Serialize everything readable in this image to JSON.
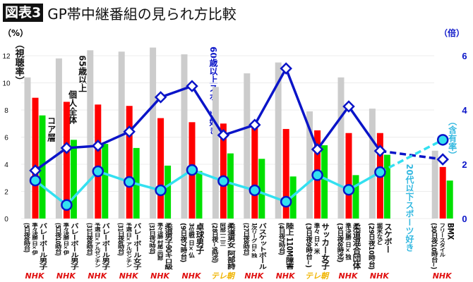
{
  "header": {
    "badge": "図表3",
    "title": "GP帯中継番組の見られ方比較"
  },
  "chart_data": {
    "type": "bar+line",
    "title": "GP帯中継番組の見られ方比較",
    "left_axis": {
      "unit": "（%）",
      "label": "（視聴率）",
      "ticks": [
        0,
        2,
        4,
        6,
        8,
        10,
        12
      ],
      "range": [
        0,
        12
      ]
    },
    "right_axis": {
      "unit": "（倍）",
      "label": "（含有率）",
      "ticks": [
        0,
        2,
        4,
        6
      ],
      "range": [
        0,
        6
      ]
    },
    "grid": true,
    "categories": [
      {
        "name": "バレーボール男子",
        "sub": "準々決勝 日×伊",
        "date": "(5日夜8時台)",
        "network": "NHK"
      },
      {
        "name": "バレーボール男子",
        "sub": "準々決勝 日×伊",
        "date": "(5日夜10時台)",
        "network": "NHK"
      },
      {
        "name": "バレーボール男子",
        "sub": "予選 日×アルゼンチン",
        "date": "(31日夜8時台)",
        "network": "NHK"
      },
      {
        "name": "バレーボール女子",
        "sub": "予選 日×アルゼンチン",
        "date": "(31日夜8時台)",
        "network": "NHK"
      },
      {
        "name": "柔道男子90キロ級",
        "sub": "準々決勝 村尾三四郎",
        "date": "(31日夜7時台)",
        "network": "NHK"
      },
      {
        "name": "卓球男子",
        "sub": "3位戦 日×仏",
        "date": "(9日夜7時台)",
        "network": "NHK"
      },
      {
        "name": "柔道男女 阿部詩",
        "sub": "阿部一二三",
        "date": "(28日夜~9時迄)",
        "network": "テレ朝"
      },
      {
        "name": "バスケットボール",
        "sub": "1次リーグ 日×独",
        "date": "(27日夜8時台)",
        "network": "NHK"
      },
      {
        "name": "陸上 110M障害",
        "sub": "",
        "date": "(4日夜7時台)",
        "network": "NHK"
      },
      {
        "name": "サッカー女子",
        "sub": "準々 日×米",
        "date": "(3日夜9時台~)",
        "network": "テレ朝"
      },
      {
        "name": "柔道混合団体",
        "sub": "準決勝 日×独",
        "date": "(3日夜8時迄)",
        "network": "NHK"
      },
      {
        "name": "スケボー",
        "sub": "堀米など",
        "date": "(29日夜10時台)",
        "network": "NHK"
      },
      {
        "name": "BMX",
        "sub": "フリースタイル",
        "date": "(30日夜10時台~)",
        "network": "NHK"
      }
    ],
    "series": [
      {
        "name": "65歳以上",
        "type": "bar",
        "axis": "left",
        "color": "#cccccc",
        "values": [
          10.4,
          11.8,
          12.4,
          12.3,
          12.6,
          12.1,
          9.7,
          10.7,
          11.5,
          7.9,
          10.4,
          8.1,
          5.0
        ]
      },
      {
        "name": "個人全体",
        "type": "bar",
        "axis": "left",
        "color": "#ff0000",
        "values": [
          8.9,
          8.6,
          8.4,
          8.3,
          7.4,
          7.1,
          7.0,
          6.7,
          6.6,
          6.5,
          6.3,
          6.3,
          3.8
        ]
      },
      {
        "name": "コア層",
        "type": "bar",
        "axis": "left",
        "color": "#00e000",
        "values": [
          7.6,
          5.8,
          5.5,
          5.2,
          3.9,
          3.5,
          4.8,
          4.4,
          3.1,
          5.4,
          3.2,
          4.7,
          2.8
        ]
      },
      {
        "name": "60歳以上スポーツ好き",
        "type": "line",
        "axis": "right",
        "color": "#0a14c8",
        "marker": "diamond",
        "values": [
          1.77,
          2.6,
          2.68,
          3.2,
          4.47,
          4.88,
          3.07,
          3.45,
          5.53,
          2.55,
          4.13,
          2.49,
          2.18
        ]
      },
      {
        "name": "20代以下スポーツ好き",
        "type": "line",
        "axis": "right",
        "color": "#33e0f0",
        "marker": "circle",
        "values": [
          1.4,
          0.5,
          1.74,
          1.35,
          1.04,
          1.79,
          1.38,
          1.04,
          0.62,
          1.6,
          1.06,
          1.71,
          2.9
        ]
      }
    ],
    "last_segment_dashed": true,
    "network_colors": {
      "NHK": "#e01010",
      "テレ朝": "#f0b400"
    }
  }
}
